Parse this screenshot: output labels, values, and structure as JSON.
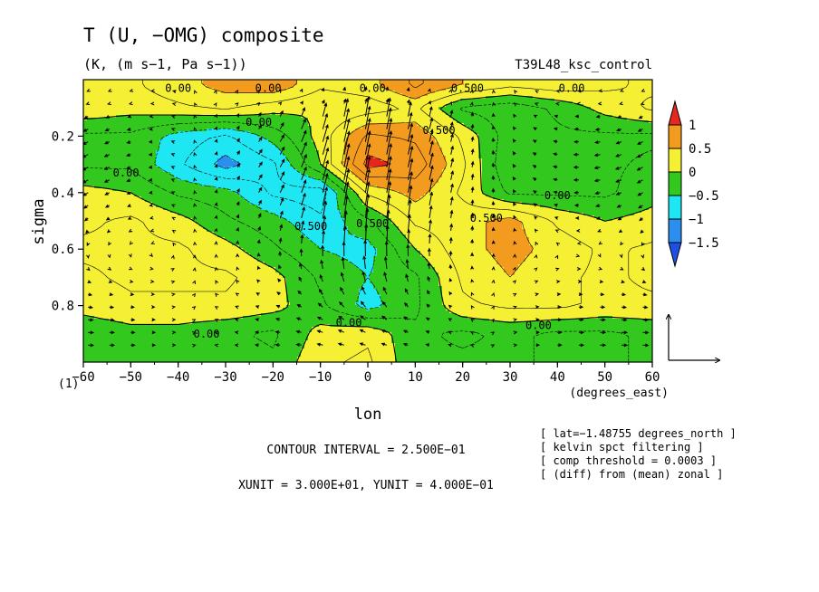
{
  "chart_data": {
    "type": "heatmap",
    "title": "T (U, −OMG) composite",
    "subtitle": "(K, (m s−1, Pa s−1))",
    "experiment": "T39L48_ksc_control",
    "xlabel": "lon",
    "xunits": "(degrees_east)",
    "ylabel": "sigma",
    "ylabel_bottom": "(1)",
    "xlim": [
      -60,
      60
    ],
    "ylim": [
      1.0,
      0.0
    ],
    "x_ticks": [
      -60,
      -50,
      -40,
      -30,
      -20,
      -10,
      0,
      10,
      20,
      30,
      40,
      50,
      60
    ],
    "x_tick_labels": [
      "−60",
      "−50",
      "−40",
      "−30",
      "−20",
      "−10",
      "0",
      "10",
      "20",
      "30",
      "40",
      "50",
      "60"
    ],
    "y_ticks": [
      0.2,
      0.4,
      0.6,
      0.8
    ],
    "y_tick_labels": [
      "0.2",
      "0.4",
      "0.6",
      "0.8"
    ],
    "colorbar": {
      "levels": [
        1,
        0.5,
        0,
        -0.5,
        -1,
        -1.5
      ],
      "labels": [
        "1",
        "0.5",
        "0",
        "−0.5",
        "−1",
        "−1.5"
      ],
      "colors": [
        "#e8261f",
        "#f29b1e",
        "#f5f033",
        "#33c81e",
        "#1ee6f2",
        "#2c8ff0",
        "#1e50e8"
      ]
    },
    "contour_labels": [
      {
        "text": "0.00",
        "x": -40,
        "y": 0.03
      },
      {
        "text": "0.00",
        "x": -21,
        "y": 0.03
      },
      {
        "text": "0.00",
        "x": 1,
        "y": 0.03
      },
      {
        "text": "0.500",
        "x": 21,
        "y": 0.03
      },
      {
        "text": "0.00",
        "x": 43,
        "y": 0.03
      },
      {
        "text": "0.00",
        "x": -23,
        "y": 0.15
      },
      {
        "text": "0.500",
        "x": 15,
        "y": 0.18
      },
      {
        "text": "0.00",
        "x": -51,
        "y": 0.33
      },
      {
        "text": "0.00",
        "x": 40,
        "y": 0.41
      },
      {
        "text": "0.500",
        "x": -12,
        "y": 0.52
      },
      {
        "text": "0.500",
        "x": 1,
        "y": 0.51
      },
      {
        "text": "0.500",
        "x": 25,
        "y": 0.49
      },
      {
        "text": "0.00",
        "x": -34,
        "y": 0.9
      },
      {
        "text": "0.00",
        "x": -4,
        "y": 0.86
      },
      {
        "text": "0.00",
        "x": 36,
        "y": 0.87
      }
    ],
    "field": {
      "x": [
        -60,
        -50,
        -40,
        -30,
        -20,
        -10,
        0,
        10,
        20,
        30,
        40,
        50,
        60
      ],
      "y": [
        0.02,
        0.1,
        0.2,
        0.3,
        0.4,
        0.5,
        0.6,
        0.7,
        0.8,
        0.9,
        1.0
      ],
      "values": [
        [
          0.1,
          0.2,
          0.4,
          0.6,
          0.7,
          0.3,
          0.4,
          0.8,
          0.5,
          0.3,
          0.4,
          0.3,
          0.2
        ],
        [
          0.2,
          0.1,
          0.2,
          0.3,
          0.1,
          0.0,
          0.1,
          0.3,
          -0.3,
          -0.4,
          -0.2,
          0.1,
          0.3
        ],
        [
          -0.3,
          -0.3,
          -0.6,
          -0.8,
          -0.4,
          0.1,
          0.8,
          0.7,
          0.2,
          -0.4,
          -0.3,
          -0.3,
          -0.3
        ],
        [
          -0.3,
          -0.3,
          -0.7,
          -1.1,
          -0.8,
          0.0,
          1.1,
          0.9,
          0.3,
          -0.5,
          -0.4,
          -0.3,
          -0.2
        ],
        [
          0.1,
          0.0,
          -0.3,
          -0.4,
          -0.8,
          -0.9,
          0.3,
          0.6,
          0.2,
          -0.3,
          -0.3,
          -0.3,
          -0.1
        ],
        [
          0.2,
          0.3,
          0.1,
          -0.2,
          -0.4,
          -0.7,
          -0.3,
          0.3,
          0.4,
          0.6,
          0.2,
          0.0,
          0.1
        ],
        [
          0.3,
          0.3,
          0.3,
          0.1,
          -0.2,
          -0.5,
          -0.6,
          0.0,
          0.4,
          0.6,
          0.4,
          0.2,
          0.3
        ],
        [
          0.2,
          0.3,
          0.3,
          0.3,
          0.1,
          -0.3,
          -0.5,
          -0.3,
          0.3,
          0.5,
          0.3,
          0.2,
          0.3
        ],
        [
          0.1,
          0.2,
          0.2,
          0.2,
          0.1,
          -0.2,
          -0.6,
          -0.3,
          0.2,
          0.3,
          0.3,
          0.2,
          0.2
        ],
        [
          -0.2,
          -0.1,
          -0.1,
          -0.2,
          -0.3,
          0.1,
          0.2,
          -0.2,
          -0.3,
          -0.2,
          -0.3,
          -0.3,
          -0.2
        ],
        [
          -0.2,
          -0.2,
          -0.1,
          -0.1,
          -0.2,
          0.2,
          0.3,
          -0.2,
          -0.2,
          -0.2,
          -0.3,
          -0.3,
          -0.2
        ]
      ]
    }
  },
  "annotations": {
    "contour_interval": "CONTOUR INTERVAL = 2.500E−01",
    "units": "XUNIT = 3.000E+01, YUNIT = 4.000E−01",
    "info_lines": [
      "[ lat=−1.48755 degrees_north ]",
      "[ kelvin spct filtering ]",
      "[ comp threshold = 0.0003 ]",
      "[ (diff) from (mean) zonal ]"
    ]
  }
}
